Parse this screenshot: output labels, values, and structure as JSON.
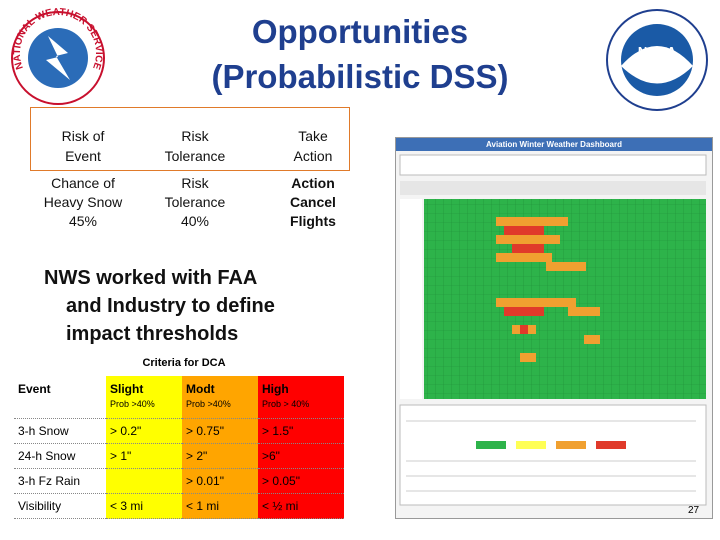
{
  "logos": {
    "left": "NATIONAL WEATHER SERVICE",
    "right": "NOAA"
  },
  "title": [
    "Opportunities",
    "(Probabilistic DSS)"
  ],
  "flow": {
    "headers": [
      [
        "Risk of",
        "Event"
      ],
      [
        "Risk",
        "Tolerance"
      ],
      [
        "Take",
        "Action"
      ]
    ],
    "values": [
      [
        "Chance of",
        "Heavy Snow",
        "45%"
      ],
      [
        "Risk",
        "Tolerance",
        "40%"
      ],
      [
        "Action",
        "Cancel",
        "Flights"
      ]
    ]
  },
  "bullet": [
    "NWS worked with FAA",
    "and Industry to define",
    "impact thresholds"
  ],
  "criteria": {
    "caption": "Criteria for DCA",
    "columns": [
      {
        "name": "Event"
      },
      {
        "name": "Slight",
        "sub": "Prob >40%"
      },
      {
        "name": "Modt",
        "sub": "Prob >40%"
      },
      {
        "name": "High",
        "sub": "Prob > 40%"
      }
    ],
    "rows": [
      [
        "3-h Snow",
        "> 0.2\"",
        "> 0.75\"",
        "> 1.5\""
      ],
      [
        "24-h Snow",
        "> 1\"",
        "> 2\"",
        ">6\""
      ],
      [
        "3-h Fz Rain",
        null,
        "> 0.01\"",
        "> 0.05\""
      ],
      [
        "Visibility",
        "< 3 mi",
        "< 1 mi",
        "< ½ mi"
      ]
    ]
  },
  "dashboard": {
    "title": "Aviation Winter Weather Dashboard"
  },
  "page_number": "27"
}
